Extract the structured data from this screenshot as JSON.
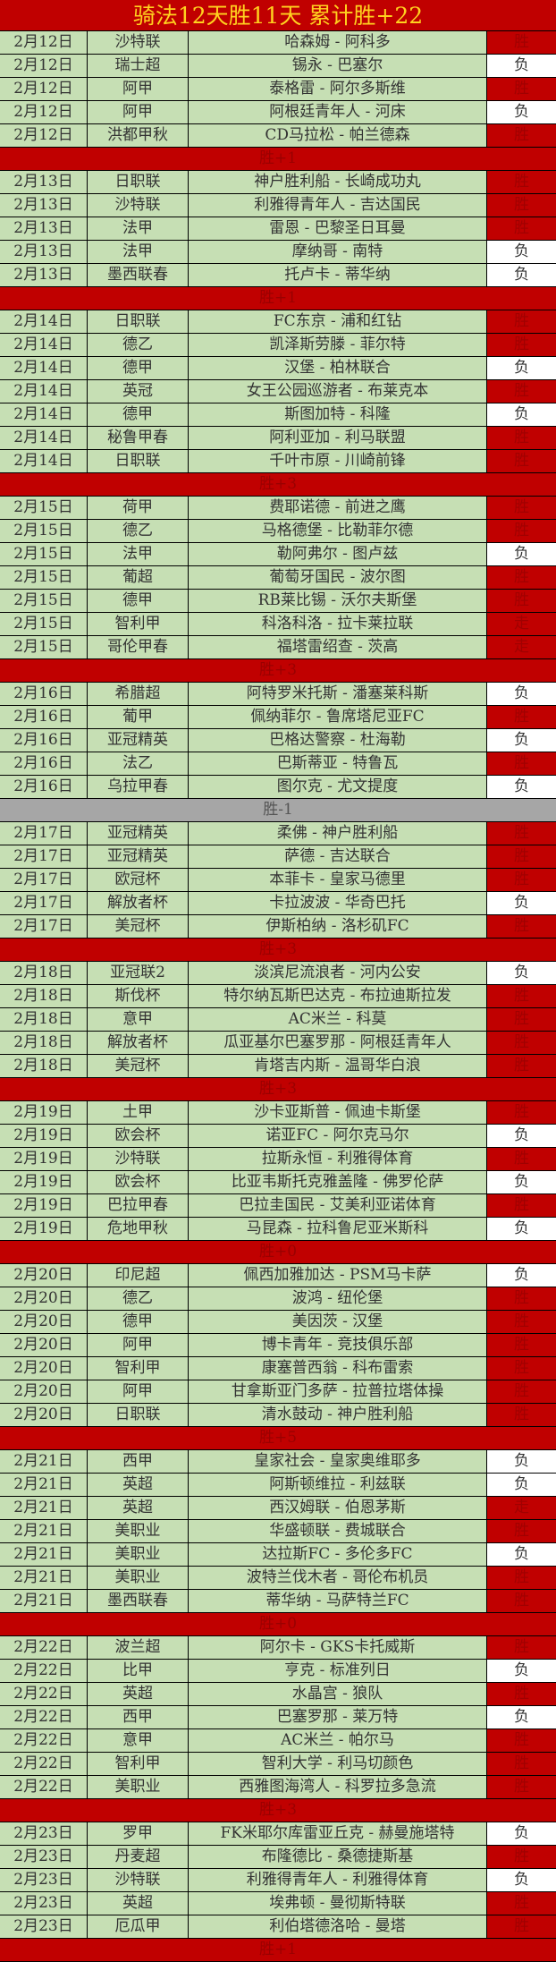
{
  "title": "骑法12天胜11天  累计胜+22",
  "colors": {
    "win_bg": "#c00000",
    "lose_bg": "#ffffff",
    "row_bg": "#c6dfb4",
    "negative_summary_bg": "#a6a6a6",
    "title_text": "#ffd21f"
  },
  "groups": [
    {
      "summary": "胜+1",
      "rows": [
        {
          "date": "2月12日",
          "league": "沙特联",
          "match": "哈森姆 - 阿科多",
          "result": "胜"
        },
        {
          "date": "2月12日",
          "league": "瑞士超",
          "match": "锡永 - 巴塞尔",
          "result": "负"
        },
        {
          "date": "2月12日",
          "league": "阿甲",
          "match": "泰格雷 - 阿尔多斯维",
          "result": "胜"
        },
        {
          "date": "2月12日",
          "league": "阿甲",
          "match": "阿根廷青年人 - 河床",
          "result": "负"
        },
        {
          "date": "2月12日",
          "league": "洪都甲秋",
          "match": "CD马拉松 - 帕兰德森",
          "result": "胜"
        }
      ]
    },
    {
      "summary": "胜+1",
      "rows": [
        {
          "date": "2月13日",
          "league": "日职联",
          "match": "神户胜利船 - 长崎成功丸",
          "result": "胜"
        },
        {
          "date": "2月13日",
          "league": "沙特联",
          "match": "利雅得青年人 - 吉达国民",
          "result": "胜"
        },
        {
          "date": "2月13日",
          "league": "法甲",
          "match": "雷恩 - 巴黎圣日耳曼",
          "result": "胜"
        },
        {
          "date": "2月13日",
          "league": "法甲",
          "match": "摩纳哥 - 南特",
          "result": "负"
        },
        {
          "date": "2月13日",
          "league": "墨西联春",
          "match": "托卢卡 - 蒂华纳",
          "result": "负"
        }
      ]
    },
    {
      "summary": "胜+3",
      "rows": [
        {
          "date": "2月14日",
          "league": "日职联",
          "match": "FC东京 - 浦和红钻",
          "result": "胜"
        },
        {
          "date": "2月14日",
          "league": "德乙",
          "match": "凯泽斯劳滕 - 菲尔特",
          "result": "胜"
        },
        {
          "date": "2月14日",
          "league": "德甲",
          "match": "汉堡 - 柏林联合",
          "result": "负"
        },
        {
          "date": "2月14日",
          "league": "英冠",
          "match": "女王公园巡游者 - 布莱克本",
          "result": "胜"
        },
        {
          "date": "2月14日",
          "league": "德甲",
          "match": "斯图加特 - 科隆",
          "result": "负"
        },
        {
          "date": "2月14日",
          "league": "秘鲁甲春",
          "match": "阿利亚加 - 利马联盟",
          "result": "胜"
        },
        {
          "date": "2月14日",
          "league": "日职联",
          "match": "千叶市原 - 川崎前锋",
          "result": "胜"
        }
      ]
    },
    {
      "summary": "胜+3",
      "rows": [
        {
          "date": "2月15日",
          "league": "荷甲",
          "match": "费耶诺德 - 前进之鹰",
          "result": "胜"
        },
        {
          "date": "2月15日",
          "league": "德乙",
          "match": "马格德堡 - 比勒菲尔德",
          "result": "胜"
        },
        {
          "date": "2月15日",
          "league": "法甲",
          "match": "勒阿弗尔 - 图卢兹",
          "result": "负"
        },
        {
          "date": "2月15日",
          "league": "葡超",
          "match": "葡萄牙国民 - 波尔图",
          "result": "胜"
        },
        {
          "date": "2月15日",
          "league": "德甲",
          "match": "RB莱比锡 - 沃尔夫斯堡",
          "result": "胜"
        },
        {
          "date": "2月15日",
          "league": "智利甲",
          "match": "科洛科洛 - 拉卡莱拉联",
          "result": "走"
        },
        {
          "date": "2月15日",
          "league": "哥伦甲春",
          "match": "福塔雷绍查 - 茨高",
          "result": "走"
        }
      ]
    },
    {
      "summary": "胜-1",
      "negative": true,
      "rows": [
        {
          "date": "2月16日",
          "league": "希腊超",
          "match": "阿特罗米托斯 - 潘塞莱科斯",
          "result": "负"
        },
        {
          "date": "2月16日",
          "league": "葡甲",
          "match": "佩纳菲尔 - 鲁席塔尼亚FC",
          "result": "胜"
        },
        {
          "date": "2月16日",
          "league": "亚冠精英",
          "match": "巴格达警察 - 杜海勒",
          "result": "负"
        },
        {
          "date": "2月16日",
          "league": "法乙",
          "match": "巴斯蒂亚 - 特鲁瓦",
          "result": "胜"
        },
        {
          "date": "2月16日",
          "league": "乌拉甲春",
          "match": "图尔克 - 尤文提度",
          "result": "负"
        }
      ]
    },
    {
      "summary": "胜+3",
      "rows": [
        {
          "date": "2月17日",
          "league": "亚冠精英",
          "match": "柔佛 - 神户胜利船",
          "result": "胜"
        },
        {
          "date": "2月17日",
          "league": "亚冠精英",
          "match": "萨德 - 吉达联合",
          "result": "胜"
        },
        {
          "date": "2月17日",
          "league": "欧冠杯",
          "match": "本菲卡 - 皇家马德里",
          "result": "胜"
        },
        {
          "date": "2月17日",
          "league": "解放者杯",
          "match": "卡拉波波 - 华奇巴托",
          "result": "负"
        },
        {
          "date": "2月17日",
          "league": "美冠杯",
          "match": "伊斯柏纳 - 洛杉矶FC",
          "result": "胜"
        }
      ]
    },
    {
      "summary": "胜+3",
      "rows": [
        {
          "date": "2月18日",
          "league": "亚冠联2",
          "match": "淡滨尼流浪者 - 河内公安",
          "result": "负"
        },
        {
          "date": "2月18日",
          "league": "斯伐杯",
          "match": "特尔纳瓦斯巴达克 - 布拉迪斯拉发",
          "result": "胜"
        },
        {
          "date": "2月18日",
          "league": "意甲",
          "match": "AC米兰 - 科莫",
          "result": "胜"
        },
        {
          "date": "2月18日",
          "league": "解放者杯",
          "match": "瓜亚基尔巴塞罗那 - 阿根廷青年人",
          "result": "胜"
        },
        {
          "date": "2月18日",
          "league": "美冠杯",
          "match": "肯塔吉内斯 - 温哥华白浪",
          "result": "胜"
        }
      ]
    },
    {
      "summary": "胜+0",
      "rows": [
        {
          "date": "2月19日",
          "league": "土甲",
          "match": "沙卡亚斯普 - 佩迪卡斯堡",
          "result": "胜"
        },
        {
          "date": "2月19日",
          "league": "欧会杯",
          "match": "诺亚FC - 阿尔克马尔",
          "result": "负"
        },
        {
          "date": "2月19日",
          "league": "沙特联",
          "match": "拉斯永恒 - 利雅得体育",
          "result": "胜"
        },
        {
          "date": "2月19日",
          "league": "欧会杯",
          "match": "比亚韦斯托克雅盖隆 - 佛罗伦萨",
          "result": "负"
        },
        {
          "date": "2月19日",
          "league": "巴拉甲春",
          "match": "巴拉圭国民 - 艾美利亚诺体育",
          "result": "胜"
        },
        {
          "date": "2月19日",
          "league": "危地甲秋",
          "match": "马昆森 - 拉科鲁尼亚米斯科",
          "result": "负"
        }
      ]
    },
    {
      "summary": "胜+5",
      "rows": [
        {
          "date": "2月20日",
          "league": "印尼超",
          "match": "佩西加雅加达 - PSM马卡萨",
          "result": "负"
        },
        {
          "date": "2月20日",
          "league": "德乙",
          "match": "波鸿 - 纽伦堡",
          "result": "胜"
        },
        {
          "date": "2月20日",
          "league": "德甲",
          "match": "美因茨 - 汉堡",
          "result": "胜"
        },
        {
          "date": "2月20日",
          "league": "阿甲",
          "match": "博卡青年 - 竞技俱乐部",
          "result": "胜"
        },
        {
          "date": "2月20日",
          "league": "智利甲",
          "match": "康塞普西翁 - 科布雷索",
          "result": "胜"
        },
        {
          "date": "2月20日",
          "league": "阿甲",
          "match": "甘拿斯亚门多萨 - 拉普拉塔体操",
          "result": "胜"
        },
        {
          "date": "2月20日",
          "league": "日职联",
          "match": "清水鼓动 - 神户胜利船",
          "result": "胜"
        }
      ]
    },
    {
      "summary": "胜+0",
      "rows": [
        {
          "date": "2月21日",
          "league": "西甲",
          "match": "皇家社会 - 皇家奥维耶多",
          "result": "负"
        },
        {
          "date": "2月21日",
          "league": "英超",
          "match": "阿斯顿维拉 - 利兹联",
          "result": "负"
        },
        {
          "date": "2月21日",
          "league": "英超",
          "match": "西汉姆联 - 伯恩茅斯",
          "result": "走"
        },
        {
          "date": "2月21日",
          "league": "美职业",
          "match": "华盛顿联 - 费城联合",
          "result": "胜"
        },
        {
          "date": "2月21日",
          "league": "美职业",
          "match": "达拉斯FC - 多伦多FC",
          "result": "负"
        },
        {
          "date": "2月21日",
          "league": "美职业",
          "match": "波特兰伐木者 - 哥伦布机员",
          "result": "胜"
        },
        {
          "date": "2月21日",
          "league": "墨西联春",
          "match": "蒂华纳 - 马萨特兰FC",
          "result": "胜"
        }
      ]
    },
    {
      "summary": "胜+3",
      "rows": [
        {
          "date": "2月22日",
          "league": "波兰超",
          "match": "阿尔卡 - GKS卡托威斯",
          "result": "胜"
        },
        {
          "date": "2月22日",
          "league": "比甲",
          "match": "亨克 - 标准列日",
          "result": "负"
        },
        {
          "date": "2月22日",
          "league": "英超",
          "match": "水晶宫 - 狼队",
          "result": "胜"
        },
        {
          "date": "2月22日",
          "league": "西甲",
          "match": "巴塞罗那 - 莱万特",
          "result": "负"
        },
        {
          "date": "2月22日",
          "league": "意甲",
          "match": "AC米兰 - 帕尔马",
          "result": "胜"
        },
        {
          "date": "2月22日",
          "league": "智利甲",
          "match": "智利大学 - 利马切颜色",
          "result": "胜"
        },
        {
          "date": "2月22日",
          "league": "美职业",
          "match": "西雅图海湾人 - 科罗拉多急流",
          "result": "胜"
        }
      ]
    },
    {
      "summary": "胜+1",
      "rows": [
        {
          "date": "2月23日",
          "league": "罗甲",
          "match": "FK米耶尔库雷亚丘克 - 赫曼施塔特",
          "result": "负"
        },
        {
          "date": "2月23日",
          "league": "丹麦超",
          "match": "布隆德比 - 桑德捷斯基",
          "result": "胜"
        },
        {
          "date": "2月23日",
          "league": "沙特联",
          "match": "利雅得青年人 - 利雅得体育",
          "result": "负"
        },
        {
          "date": "2月23日",
          "league": "英超",
          "match": "埃弗顿 - 曼彻斯特联",
          "result": "胜"
        },
        {
          "date": "2月23日",
          "league": "厄瓜甲",
          "match": "利伯塔德洛哈 - 曼塔",
          "result": "胜"
        }
      ]
    }
  ]
}
